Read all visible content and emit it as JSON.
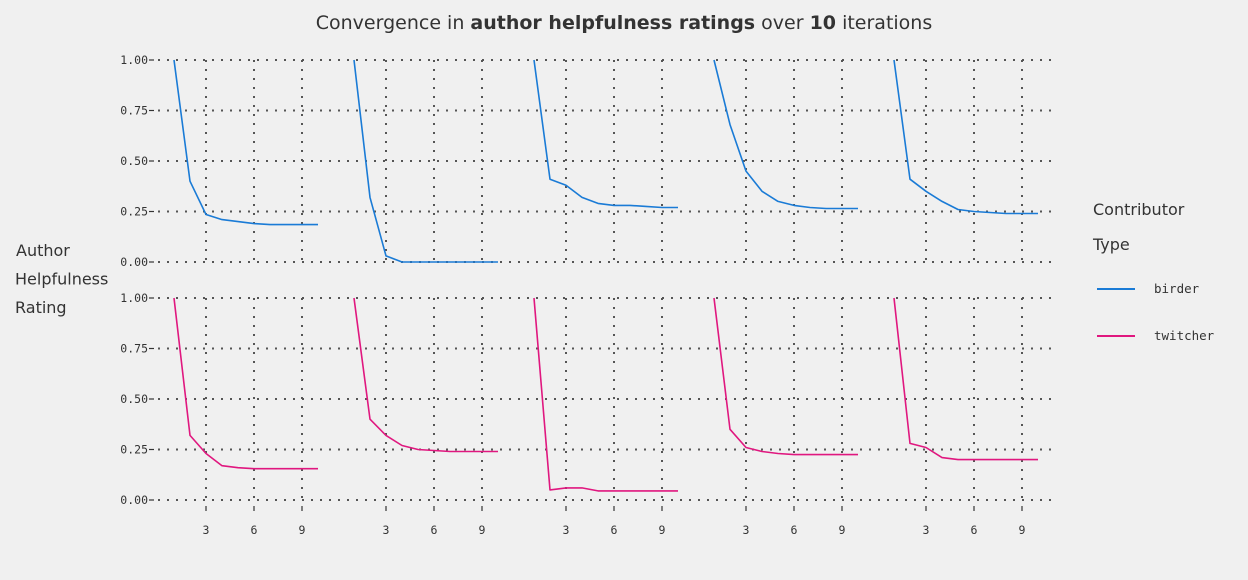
{
  "chart_data": {
    "type": "line",
    "title_parts": [
      {
        "text": "Convergence in ",
        "bold": false
      },
      {
        "text": "author helpfulness ratings",
        "bold": true
      },
      {
        "text": " over ",
        "bold": false
      },
      {
        "text": "10",
        "bold": true
      },
      {
        "text": " iterations",
        "bold": false
      }
    ],
    "ylabel_lines": [
      "Author",
      "Helpfulness",
      "Rating"
    ],
    "xlabel": "",
    "x": [
      1,
      2,
      3,
      4,
      5,
      6,
      7,
      8,
      9,
      10
    ],
    "xlim": [
      0,
      10
    ],
    "ylim": [
      0,
      1
    ],
    "x_ticks": [
      3,
      6,
      9
    ],
    "y_ticks": [
      0,
      0.25,
      0.5,
      0.75,
      1
    ],
    "y_tick_labels": [
      "0.00",
      "0.25",
      "0.50",
      "0.75",
      "1.00"
    ],
    "grid": true,
    "legend": {
      "title_lines": [
        "Contributor",
        "Type"
      ],
      "placement": "right",
      "entries": [
        {
          "label": "birder",
          "color": "#1a7bd6"
        },
        {
          "label": "twitcher",
          "color": "#e0177f"
        }
      ]
    },
    "facets": [
      {
        "row": "birder",
        "col": 1,
        "values": [
          1.0,
          0.4,
          0.235,
          0.21,
          0.2,
          0.19,
          0.185,
          0.185,
          0.185,
          0.185
        ]
      },
      {
        "row": "birder",
        "col": 2,
        "values": [
          1.0,
          0.32,
          0.03,
          0.0,
          0.0,
          0.0,
          0.0,
          0.0,
          0.0,
          0.0
        ]
      },
      {
        "row": "birder",
        "col": 3,
        "values": [
          1.0,
          0.41,
          0.38,
          0.32,
          0.29,
          0.28,
          0.28,
          0.275,
          0.27,
          0.27
        ]
      },
      {
        "row": "birder",
        "col": 4,
        "values": [
          1.0,
          0.68,
          0.45,
          0.35,
          0.3,
          0.28,
          0.27,
          0.265,
          0.265,
          0.265
        ]
      },
      {
        "row": "birder",
        "col": 5,
        "values": [
          1.0,
          0.41,
          0.35,
          0.3,
          0.26,
          0.25,
          0.245,
          0.24,
          0.24,
          0.24
        ]
      },
      {
        "row": "twitcher",
        "col": 1,
        "values": [
          1.0,
          0.32,
          0.23,
          0.17,
          0.16,
          0.155,
          0.155,
          0.155,
          0.155,
          0.155
        ]
      },
      {
        "row": "twitcher",
        "col": 2,
        "values": [
          1.0,
          0.4,
          0.32,
          0.27,
          0.25,
          0.245,
          0.24,
          0.24,
          0.24,
          0.24
        ]
      },
      {
        "row": "twitcher",
        "col": 3,
        "values": [
          1.0,
          0.05,
          0.06,
          0.06,
          0.045,
          0.045,
          0.045,
          0.045,
          0.045,
          0.045
        ]
      },
      {
        "row": "twitcher",
        "col": 4,
        "values": [
          1.0,
          0.35,
          0.26,
          0.24,
          0.23,
          0.225,
          0.225,
          0.225,
          0.225,
          0.225
        ]
      },
      {
        "row": "twitcher",
        "col": 5,
        "values": [
          1.0,
          0.28,
          0.26,
          0.21,
          0.2,
          0.2,
          0.2,
          0.2,
          0.2,
          0.2
        ]
      }
    ]
  }
}
